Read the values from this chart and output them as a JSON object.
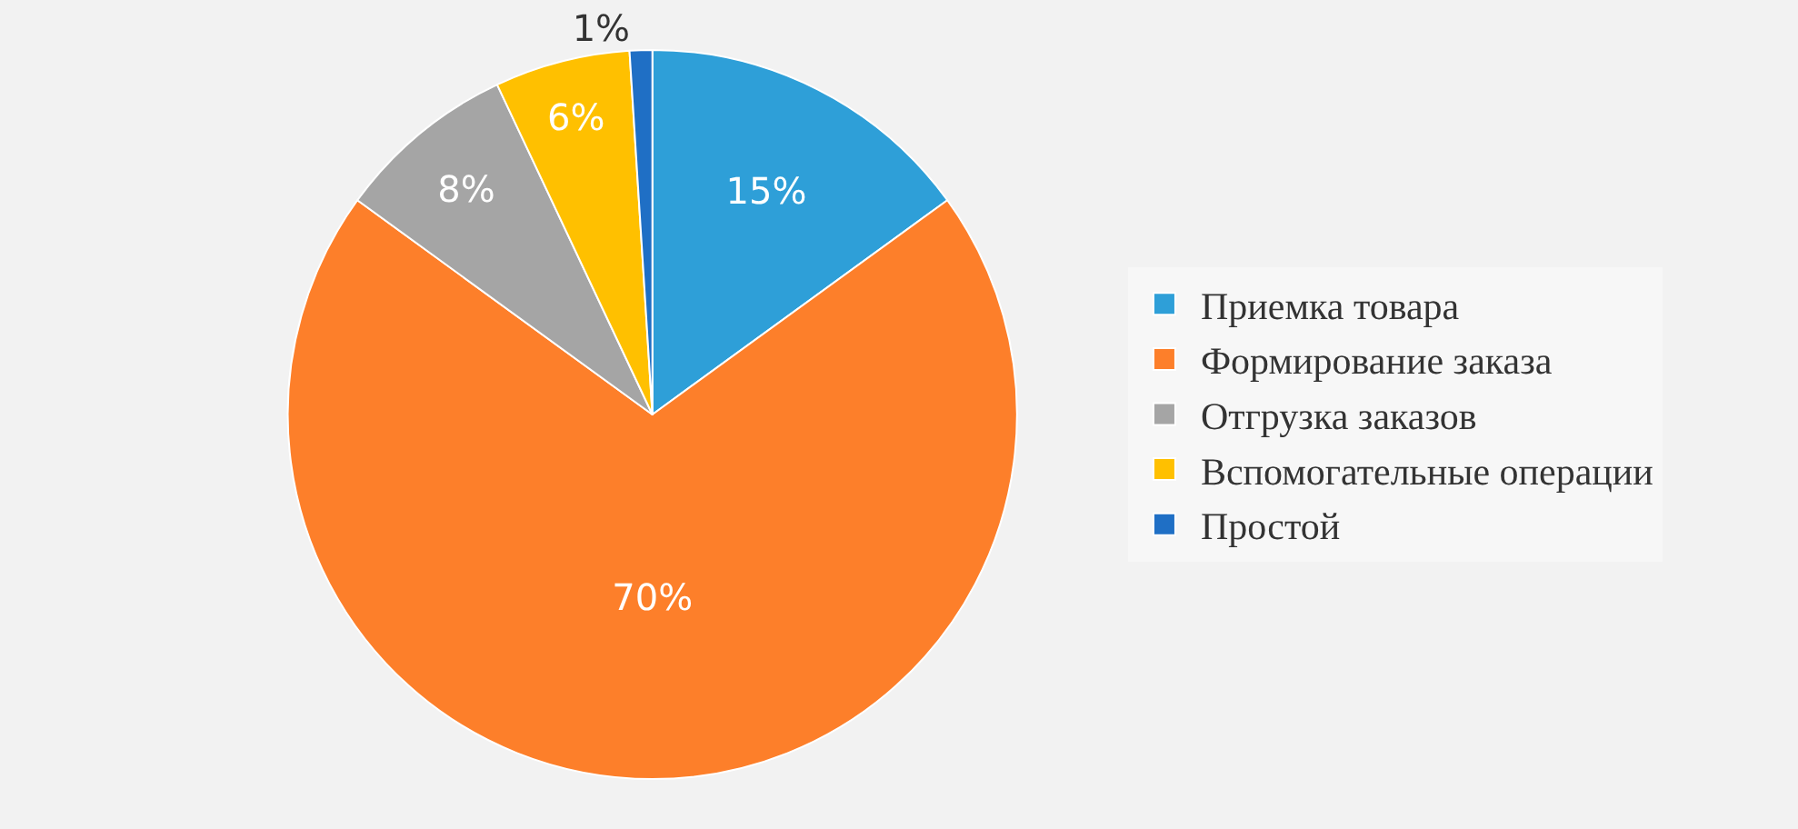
{
  "chart_data": {
    "type": "pie",
    "categories": [
      "Приемка товара",
      "Формирование заказа",
      "Отгрузка заказов",
      "Вспомогательные операции",
      "Простой"
    ],
    "values": [
      15,
      70,
      8,
      6,
      1
    ],
    "colors": [
      "#2e9fd8",
      "#fd7f2a",
      "#a5a5a5",
      "#ffc000",
      "#1f6fc5"
    ],
    "value_labels": [
      "15%",
      "70%",
      "8%",
      "6%",
      "1%"
    ],
    "legend": "right"
  }
}
